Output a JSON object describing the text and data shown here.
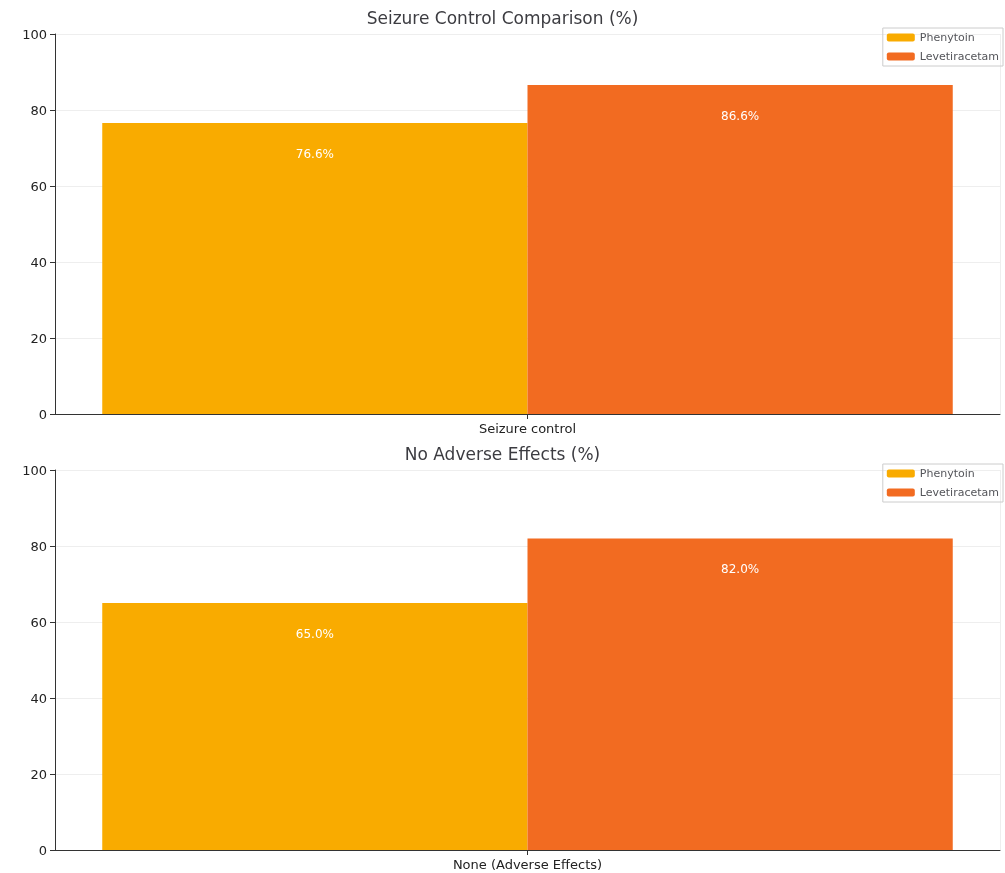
{
  "chart_data": [
    {
      "type": "bar",
      "title": "Seizure Control Comparison (%)",
      "categories": [
        "Seizure control"
      ],
      "series": [
        {
          "name": "Phenytoin",
          "color": "#f9ab00",
          "values": [
            76.6
          ],
          "value_labels": [
            "76.6%"
          ]
        },
        {
          "name": "Levetiracetam",
          "color": "#f26b21",
          "values": [
            86.6
          ],
          "value_labels": [
            "86.6%"
          ]
        }
      ],
      "ylim": [
        0,
        100
      ],
      "yticks": [
        0,
        20,
        40,
        60,
        80,
        100
      ],
      "grid": true,
      "legend": "top right"
    },
    {
      "type": "bar",
      "title": "No Adverse Effects (%)",
      "categories": [
        "None (Adverse Effects)"
      ],
      "series": [
        {
          "name": "Phenytoin",
          "color": "#f9ab00",
          "values": [
            65.0
          ],
          "value_labels": [
            "65.0%"
          ]
        },
        {
          "name": "Levetiracetam",
          "color": "#f26b21",
          "values": [
            82.0
          ],
          "value_labels": [
            "82.0%"
          ]
        }
      ],
      "ylim": [
        0,
        100
      ],
      "yticks": [
        0,
        20,
        40,
        60,
        80,
        100
      ],
      "grid": true,
      "legend": "top right"
    }
  ]
}
